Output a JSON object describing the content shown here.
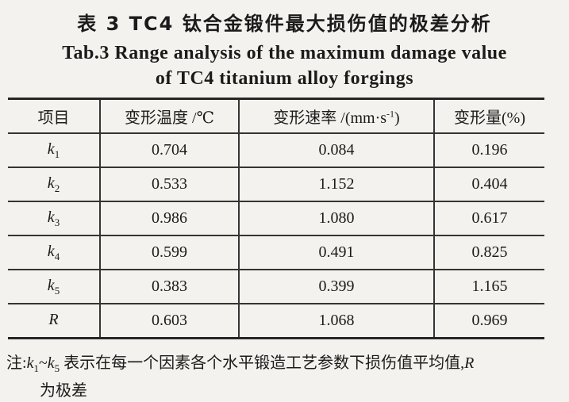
{
  "page": {
    "background": "#f4f2ee",
    "text_color": "#1b1b1b",
    "border_color": "#343434"
  },
  "title": {
    "zh": "表 3  TC4 钛合金锻件最大损伤值的极差分析",
    "en_line1": "Tab.3  Range analysis of the maximum damage value",
    "en_line2": "of TC4 titanium alloy forgings"
  },
  "table": {
    "headers": [
      {
        "text": "项目"
      },
      {
        "text": "变形温度 /℃"
      },
      {
        "pre": "变形速率 /(mm·s",
        "sup": "-1",
        "post": ")"
      },
      {
        "text": "变形量(%)"
      }
    ],
    "rows": [
      {
        "label_base": "k",
        "label_sub": "1",
        "values": [
          "0.704",
          "0.084",
          "0.196"
        ]
      },
      {
        "label_base": "k",
        "label_sub": "2",
        "values": [
          "0.533",
          "1.152",
          "0.404"
        ]
      },
      {
        "label_base": "k",
        "label_sub": "3",
        "values": [
          "0.986",
          "1.080",
          "0.617"
        ]
      },
      {
        "label_base": "k",
        "label_sub": "4",
        "values": [
          "0.599",
          "0.491",
          "0.825"
        ]
      },
      {
        "label_base": "k",
        "label_sub": "5",
        "values": [
          "0.383",
          "0.399",
          "1.165"
        ]
      },
      {
        "label_base": "R",
        "label_sub": "",
        "values": [
          "0.603",
          "1.068",
          "0.969"
        ]
      }
    ]
  },
  "footnote": {
    "prefix": "注:",
    "k_base": "k",
    "k1_sub": "1",
    "tilde": "~",
    "k5_sub": "5",
    "line1_text": " 表示在每一个因素各个水平锻造工艺参数下损伤值平均值,",
    "r_symbol": "R",
    "line2": "为极差"
  }
}
